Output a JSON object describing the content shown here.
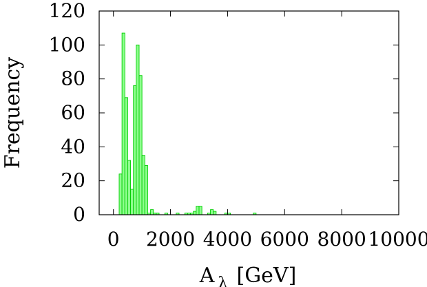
{
  "chart_data": {
    "type": "bar",
    "title": "",
    "xlabel": {
      "base": "A",
      "subscript": "λ",
      "unit": "[GeV]"
    },
    "ylabel": "Frequency",
    "xlim": [
      -500,
      10000
    ],
    "ylim": [
      0,
      120
    ],
    "x_ticks": [
      0,
      2000,
      4000,
      6000,
      8000,
      10000
    ],
    "y_ticks": [
      0,
      20,
      40,
      60,
      80,
      100,
      120
    ],
    "bin_width": 100,
    "grid": false,
    "legend": "none",
    "bar_fill": "#8eff8e",
    "bar_stroke": "#00cc00",
    "bins": [
      {
        "start": 200,
        "value": 24
      },
      {
        "start": 300,
        "value": 107
      },
      {
        "start": 400,
        "value": 69
      },
      {
        "start": 500,
        "value": 32
      },
      {
        "start": 600,
        "value": 15
      },
      {
        "start": 700,
        "value": 76
      },
      {
        "start": 800,
        "value": 100
      },
      {
        "start": 900,
        "value": 82
      },
      {
        "start": 1000,
        "value": 35
      },
      {
        "start": 1100,
        "value": 29
      },
      {
        "start": 1200,
        "value": 1
      },
      {
        "start": 1300,
        "value": 3
      },
      {
        "start": 1400,
        "value": 1
      },
      {
        "start": 1500,
        "value": 1
      },
      {
        "start": 1800,
        "value": 1
      },
      {
        "start": 2200,
        "value": 1
      },
      {
        "start": 2500,
        "value": 1
      },
      {
        "start": 2600,
        "value": 1
      },
      {
        "start": 2700,
        "value": 1
      },
      {
        "start": 2800,
        "value": 2
      },
      {
        "start": 2900,
        "value": 5
      },
      {
        "start": 3000,
        "value": 5
      },
      {
        "start": 3300,
        "value": 1
      },
      {
        "start": 3400,
        "value": 3
      },
      {
        "start": 3500,
        "value": 2
      },
      {
        "start": 3900,
        "value": 1
      },
      {
        "start": 4000,
        "value": 1
      },
      {
        "start": 4900,
        "value": 1
      }
    ]
  }
}
